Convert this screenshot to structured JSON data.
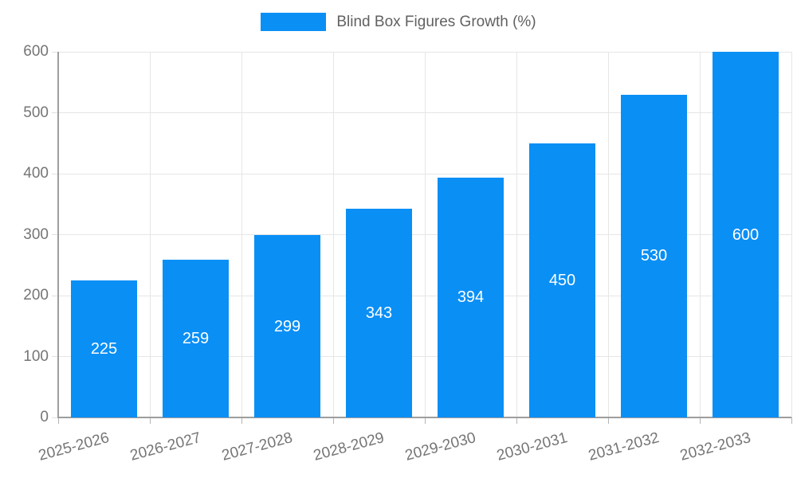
{
  "chart_data": {
    "type": "bar",
    "title": "Blind Box Figures Growth (%)",
    "categories": [
      "2025-2026",
      "2026-2027",
      "2027-2028",
      "2028-2029",
      "2029-2030",
      "2030-2031",
      "2031-2032",
      "2032-2033"
    ],
    "values": [
      225,
      259,
      299,
      343,
      394,
      450,
      530,
      600
    ],
    "xlabel": "",
    "ylabel": "",
    "ylim": [
      0,
      600
    ],
    "yticks": [
      0,
      100,
      200,
      300,
      400,
      500,
      600
    ],
    "grid": true,
    "legend_position": "top-center",
    "legend_entries": [
      "Blind Box Figures Growth (%)"
    ],
    "value_labels": "inside-center",
    "colors": {
      "bar": "#0A8FF5",
      "bar_value_label": "#ffffff",
      "grid": "#e6e6e6",
      "axis": "#9e9e9e",
      "y_tick_mark": "#e0e0e0",
      "x_tick_mark": "#b5b5b5",
      "tick_label": "#757575",
      "legend_text": "#616161",
      "background": "#ffffff"
    }
  }
}
